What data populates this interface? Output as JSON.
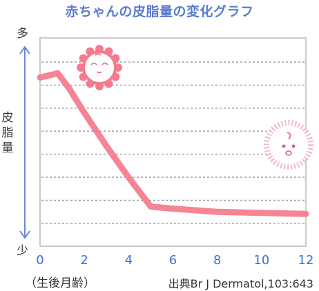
{
  "chart_data": {
    "type": "line",
    "title": "赤ちゃんの皮脂量の変化グラフ",
    "ylabel": "皮脂量",
    "y_top_label": "多",
    "y_bottom_label": "少",
    "xlabel": "（生後月齢）",
    "source": "出典Br J Dermatol,103:643",
    "x_ticks": [
      0,
      2,
      4,
      6,
      8,
      10,
      12
    ],
    "xlim": [
      0,
      12
    ],
    "ylim": [
      0,
      10
    ],
    "grid": "horizontal-dashed",
    "series": [
      {
        "x": [
          0,
          0.8,
          1.3,
          2,
          3,
          4,
          5,
          6,
          8,
          10,
          12
        ],
        "y": [
          8.1,
          8.3,
          7.6,
          6.4,
          4.8,
          3.3,
          1.9,
          1.8,
          1.65,
          1.6,
          1.55
        ]
      }
    ],
    "colors": {
      "line": "#f47b8c",
      "title": "#5b7bd1",
      "axis": "#6b8ad6",
      "axis_label": "#3b6fd6",
      "grid": "#9a9a9a",
      "frame": "#b9b9b9"
    },
    "decorations": [
      "sun-baby-icon",
      "baby-face-icon"
    ]
  }
}
